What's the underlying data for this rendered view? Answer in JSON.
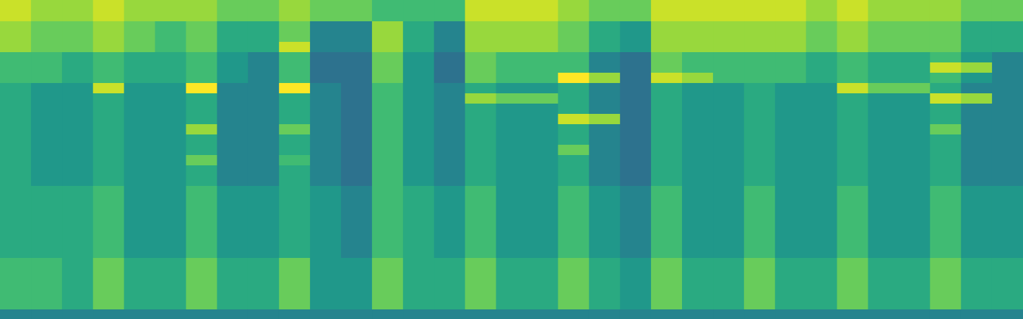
{
  "chart_data": {
    "type": "heatmap",
    "tick_labels": false,
    "xlim": [
      0,
      33
    ],
    "ylim": [
      0,
      31
    ],
    "zlim": [
      0,
      10
    ],
    "cells": [
      [
        3,
        3,
        3,
        3,
        3,
        3,
        3,
        3,
        3,
        3,
        3,
        3,
        3,
        3,
        3,
        3,
        3,
        3,
        3,
        3,
        3,
        3,
        3,
        3,
        3,
        3,
        3,
        3,
        3,
        3,
        3,
        3,
        3
      ],
      [
        6,
        6,
        5,
        7,
        5,
        5,
        7,
        5,
        5,
        7,
        4,
        4,
        7,
        5,
        5,
        7,
        5,
        5,
        7,
        5,
        4,
        7,
        5,
        5,
        7,
        5,
        5,
        7,
        5,
        5,
        7,
        5,
        5
      ],
      [
        6,
        6,
        5,
        7,
        5,
        5,
        7,
        5,
        5,
        7,
        4,
        4,
        7,
        5,
        5,
        7,
        5,
        5,
        7,
        5,
        4,
        7,
        5,
        5,
        7,
        5,
        5,
        7,
        5,
        5,
        7,
        5,
        5
      ],
      [
        6,
        6,
        5,
        7,
        5,
        5,
        7,
        5,
        5,
        7,
        4,
        4,
        7,
        5,
        5,
        7,
        5,
        5,
        7,
        5,
        4,
        7,
        5,
        5,
        7,
        5,
        5,
        7,
        5,
        5,
        7,
        5,
        5
      ],
      [
        6,
        6,
        5,
        7,
        5,
        5,
        7,
        5,
        5,
        7,
        4,
        4,
        7,
        5,
        5,
        7,
        5,
        5,
        7,
        5,
        4,
        7,
        5,
        5,
        7,
        5,
        5,
        7,
        5,
        5,
        7,
        5,
        5
      ],
      [
        6,
        6,
        5,
        7,
        5,
        5,
        7,
        5,
        5,
        7,
        4,
        4,
        7,
        5,
        5,
        7,
        5,
        5,
        7,
        5,
        4,
        7,
        5,
        5,
        7,
        5,
        5,
        7,
        5,
        5,
        7,
        5,
        5
      ],
      [
        5,
        5,
        5,
        6,
        4,
        4,
        6,
        4,
        4,
        5,
        4,
        3,
        6,
        5,
        4,
        6,
        4,
        4,
        6,
        4,
        3,
        6,
        4,
        4,
        6,
        4,
        4,
        6,
        4,
        4,
        6,
        4,
        4
      ],
      [
        5,
        5,
        5,
        6,
        4,
        4,
        6,
        4,
        4,
        5,
        4,
        3,
        6,
        5,
        4,
        6,
        4,
        4,
        6,
        4,
        3,
        6,
        4,
        4,
        6,
        4,
        4,
        6,
        4,
        4,
        6,
        4,
        4
      ],
      [
        5,
        5,
        5,
        6,
        4,
        4,
        6,
        4,
        4,
        5,
        4,
        3,
        6,
        5,
        4,
        6,
        4,
        4,
        6,
        4,
        3,
        6,
        4,
        4,
        6,
        4,
        4,
        6,
        4,
        4,
        6,
        4,
        4
      ],
      [
        5,
        5,
        5,
        6,
        4,
        4,
        6,
        4,
        4,
        5,
        4,
        3,
        6,
        5,
        4,
        6,
        4,
        4,
        6,
        4,
        3,
        6,
        4,
        4,
        6,
        4,
        4,
        6,
        4,
        4,
        6,
        4,
        4
      ],
      [
        5,
        5,
        5,
        6,
        4,
        4,
        6,
        4,
        4,
        5,
        4,
        3,
        6,
        5,
        4,
        6,
        4,
        4,
        6,
        4,
        3,
        6,
        4,
        4,
        6,
        4,
        4,
        6,
        4,
        4,
        6,
        4,
        4
      ],
      [
        5,
        5,
        5,
        6,
        4,
        4,
        6,
        4,
        4,
        5,
        4,
        3,
        6,
        5,
        4,
        6,
        4,
        4,
        6,
        4,
        3,
        6,
        4,
        4,
        6,
        4,
        4,
        6,
        4,
        4,
        6,
        4,
        4
      ],
      [
        5,
        5,
        5,
        6,
        4,
        4,
        6,
        4,
        4,
        5,
        4,
        3,
        6,
        5,
        4,
        6,
        4,
        4,
        6,
        4,
        3,
        6,
        4,
        4,
        6,
        4,
        4,
        6,
        4,
        4,
        6,
        4,
        4
      ],
      [
        5,
        4,
        4,
        5,
        4,
        4,
        5,
        3,
        3,
        5,
        3,
        2,
        6,
        4,
        3,
        5,
        4,
        4,
        5,
        3,
        2,
        5,
        4,
        4,
        5,
        4,
        4,
        5,
        4,
        4,
        5,
        3,
        3
      ],
      [
        5,
        4,
        4,
        5,
        4,
        4,
        5,
        3,
        3,
        5,
        3,
        2,
        6,
        4,
        3,
        5,
        4,
        4,
        5,
        3,
        2,
        5,
        4,
        4,
        5,
        4,
        4,
        5,
        4,
        4,
        5,
        3,
        3
      ],
      [
        5,
        4,
        4,
        5,
        4,
        4,
        7,
        3,
        3,
        6,
        3,
        2,
        6,
        4,
        3,
        5,
        4,
        4,
        5,
        3,
        2,
        5,
        4,
        4,
        5,
        4,
        4,
        5,
        4,
        4,
        5,
        3,
        3
      ],
      [
        5,
        4,
        4,
        5,
        4,
        4,
        5,
        3,
        3,
        5,
        3,
        2,
        6,
        4,
        3,
        5,
        4,
        4,
        7,
        3,
        2,
        5,
        4,
        4,
        5,
        4,
        4,
        5,
        4,
        4,
        5,
        3,
        3
      ],
      [
        5,
        4,
        4,
        5,
        4,
        4,
        5,
        3,
        3,
        5,
        3,
        2,
        6,
        4,
        3,
        5,
        4,
        4,
        5,
        3,
        2,
        5,
        4,
        4,
        5,
        4,
        4,
        5,
        4,
        4,
        5,
        3,
        3
      ],
      [
        5,
        4,
        4,
        5,
        4,
        4,
        8,
        3,
        3,
        7,
        3,
        2,
        6,
        4,
        3,
        5,
        4,
        4,
        5,
        3,
        2,
        5,
        4,
        4,
        5,
        4,
        4,
        5,
        4,
        4,
        7,
        3,
        3
      ],
      [
        5,
        4,
        4,
        5,
        4,
        4,
        5,
        3,
        3,
        5,
        3,
        2,
        6,
        4,
        3,
        5,
        4,
        4,
        9,
        8,
        2,
        5,
        4,
        4,
        5,
        4,
        4,
        5,
        4,
        4,
        5,
        3,
        3
      ],
      [
        5,
        4,
        4,
        5,
        4,
        4,
        5,
        3,
        3,
        5,
        3,
        2,
        6,
        4,
        3,
        5,
        4,
        4,
        5,
        3,
        2,
        5,
        4,
        4,
        5,
        4,
        4,
        5,
        4,
        4,
        5,
        3,
        3
      ],
      [
        5,
        4,
        4,
        5,
        4,
        4,
        5,
        3,
        3,
        5,
        3,
        2,
        6,
        4,
        3,
        8,
        7,
        7,
        5,
        3,
        2,
        5,
        4,
        4,
        5,
        4,
        4,
        5,
        4,
        4,
        9,
        8,
        3
      ],
      [
        5,
        4,
        4,
        9,
        4,
        4,
        10,
        3,
        3,
        10,
        3,
        2,
        6,
        4,
        3,
        5,
        4,
        4,
        5,
        3,
        2,
        5,
        4,
        4,
        5,
        4,
        4,
        9,
        7,
        7,
        5,
        3,
        3
      ],
      [
        6,
        6,
        5,
        6,
        5,
        5,
        6,
        4,
        3,
        6,
        2,
        2,
        7,
        4,
        2,
        7,
        6,
        6,
        10,
        8,
        2,
        9,
        8,
        6,
        6,
        6,
        5,
        6,
        5,
        5,
        6,
        4,
        3
      ],
      [
        6,
        6,
        5,
        6,
        5,
        5,
        6,
        4,
        3,
        6,
        2,
        2,
        7,
        4,
        2,
        7,
        6,
        6,
        6,
        3,
        2,
        7,
        6,
        6,
        6,
        6,
        5,
        6,
        5,
        5,
        9,
        8,
        3
      ],
      [
        6,
        6,
        5,
        6,
        5,
        5,
        6,
        4,
        3,
        6,
        2,
        2,
        7,
        4,
        2,
        7,
        6,
        6,
        6,
        3,
        2,
        7,
        6,
        6,
        6,
        6,
        5,
        6,
        5,
        5,
        6,
        4,
        3
      ],
      [
        8,
        7,
        7,
        8,
        7,
        6,
        7,
        5,
        5,
        9,
        3,
        3,
        8,
        5,
        3,
        8,
        8,
        8,
        7,
        5,
        4,
        8,
        8,
        8,
        8,
        8,
        7,
        8,
        7,
        7,
        7,
        5,
        5
      ],
      [
        8,
        7,
        7,
        8,
        7,
        6,
        7,
        5,
        5,
        7,
        3,
        3,
        8,
        5,
        3,
        8,
        8,
        8,
        7,
        5,
        4,
        8,
        8,
        8,
        8,
        8,
        7,
        8,
        7,
        7,
        7,
        5,
        5
      ],
      [
        8,
        7,
        7,
        8,
        7,
        6,
        7,
        5,
        5,
        7,
        3,
        3,
        8,
        5,
        3,
        8,
        8,
        8,
        7,
        5,
        4,
        8,
        8,
        8,
        8,
        8,
        7,
        8,
        7,
        7,
        7,
        5,
        5
      ],
      [
        9,
        8,
        8,
        9,
        8,
        8,
        8,
        7,
        7,
        8,
        7,
        7,
        6,
        6,
        6,
        9,
        9,
        9,
        8,
        7,
        7,
        9,
        9,
        9,
        9,
        9,
        8,
        9,
        8,
        8,
        8,
        7,
        7
      ],
      [
        9,
        8,
        8,
        9,
        8,
        8,
        8,
        7,
        7,
        8,
        7,
        7,
        6,
        6,
        6,
        9,
        9,
        9,
        8,
        7,
        7,
        9,
        9,
        9,
        9,
        9,
        8,
        9,
        8,
        8,
        8,
        7,
        7
      ]
    ]
  }
}
